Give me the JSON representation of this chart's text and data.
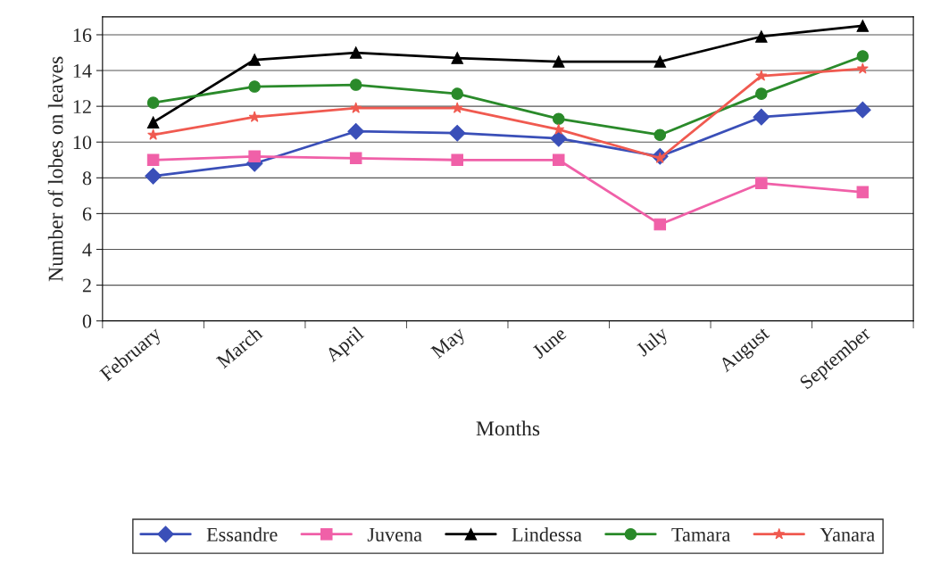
{
  "chart_data": {
    "type": "line",
    "xlabel": "Months",
    "ylabel": "Number of lobes on leaves",
    "categories": [
      "February",
      "March",
      "April",
      "May",
      "June",
      "July",
      "August",
      "September"
    ],
    "series": [
      {
        "name": "Essandre",
        "color": "#3a4fb8",
        "marker": "diamond",
        "values": [
          8.1,
          8.8,
          10.6,
          10.5,
          10.2,
          9.2,
          11.4,
          11.8
        ]
      },
      {
        "name": "Juvena",
        "color": "#f060a8",
        "marker": "square",
        "values": [
          9.0,
          9.2,
          9.1,
          9.0,
          9.0,
          5.4,
          7.7,
          7.2
        ]
      },
      {
        "name": "Lindessa",
        "color": "#000000",
        "marker": "triangle",
        "values": [
          11.1,
          14.6,
          15.0,
          14.7,
          14.5,
          14.5,
          15.9,
          16.5
        ]
      },
      {
        "name": "Tamara",
        "color": "#2a8a2a",
        "marker": "circle",
        "values": [
          12.2,
          13.1,
          13.2,
          12.7,
          11.3,
          10.4,
          12.7,
          14.8
        ]
      },
      {
        "name": "Yanara",
        "color": "#f05a50",
        "marker": "star",
        "values": [
          10.4,
          11.4,
          11.9,
          11.9,
          10.7,
          9.1,
          13.7,
          14.1
        ]
      }
    ],
    "ylim": [
      0,
      17
    ],
    "yticks": [
      0,
      2,
      4,
      6,
      8,
      10,
      12,
      14,
      16
    ],
    "grid": "y",
    "legend": "bottom",
    "line_style": "solid"
  }
}
